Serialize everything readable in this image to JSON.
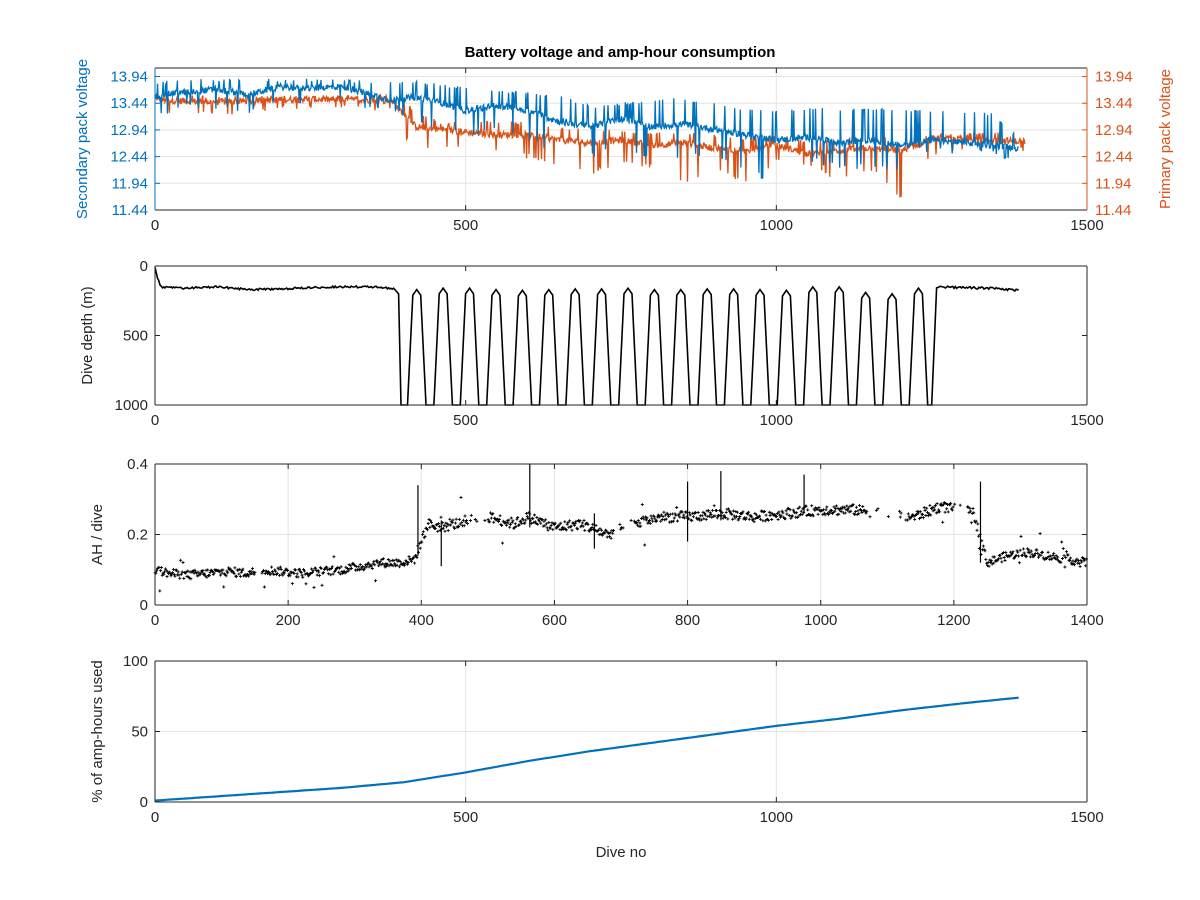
{
  "figure": {
    "title": "Battery voltage and amp-hour consumption"
  },
  "colors": {
    "secondary": "#0072BD",
    "primary": "#D95319",
    "black": "#000000",
    "grid": "#e3e3e3",
    "axis": "#262626"
  },
  "chart_data": [
    {
      "id": "voltage",
      "type": "line",
      "title": "Battery voltage and amp-hour consumption",
      "xlabel": "",
      "ylabel": "Secondary pack voltage",
      "ylabel_right": "Primary pack voltage",
      "xlim": [
        0,
        1500
      ],
      "ylim": [
        11.44,
        14.1
      ],
      "xticks": [
        "0",
        "500",
        "1000",
        "1500"
      ],
      "yticks": [
        "11.44",
        "11.94",
        "12.44",
        "12.94",
        "13.44",
        "13.94"
      ],
      "yticks_right": [
        "11.44",
        "11.94",
        "12.44",
        "12.94",
        "13.44",
        "13.94"
      ],
      "grid": true,
      "series": [
        {
          "name": "Secondary pack voltage",
          "axis": "left",
          "x": [
            0,
            10,
            50,
            100,
            150,
            200,
            250,
            300,
            350,
            380,
            420,
            460,
            500,
            550,
            600,
            650,
            700,
            750,
            800,
            850,
            900,
            950,
            1000,
            1050,
            1100,
            1150,
            1200,
            1250,
            1300,
            1350,
            1390
          ],
          "values": [
            13.55,
            13.6,
            13.65,
            13.7,
            13.6,
            13.75,
            13.72,
            13.75,
            13.6,
            13.5,
            13.55,
            13.45,
            13.3,
            13.4,
            13.3,
            13.1,
            13.0,
            13.15,
            13.0,
            13.05,
            12.95,
            12.85,
            12.75,
            12.8,
            12.7,
            12.75,
            12.65,
            12.75,
            12.7,
            12.65,
            12.6
          ],
          "range": [
            [
              12.95,
              13.85
            ],
            [
              13.2,
              13.85
            ],
            [
              13.35,
              13.9
            ],
            [
              13.3,
              13.9
            ],
            [
              13.25,
              13.9
            ],
            [
              13.4,
              13.9
            ],
            [
              13.4,
              13.9
            ],
            [
              13.45,
              13.9
            ],
            [
              13.3,
              13.85
            ],
            [
              13.3,
              13.85
            ],
            [
              13.1,
              13.85
            ],
            [
              12.9,
              13.8
            ],
            [
              12.8,
              13.75
            ],
            [
              12.9,
              13.7
            ],
            [
              12.7,
              13.65
            ],
            [
              12.5,
              13.6
            ],
            [
              12.4,
              13.4
            ],
            [
              12.6,
              13.45
            ],
            [
              12.3,
              13.5
            ],
            [
              12.4,
              13.55
            ],
            [
              12.4,
              13.45
            ],
            [
              12.2,
              13.35
            ],
            [
              11.85,
              13.3
            ],
            [
              12.35,
              13.35
            ],
            [
              12.2,
              13.35
            ],
            [
              12.2,
              13.35
            ],
            [
              12.1,
              13.35
            ],
            [
              12.5,
              13.3
            ],
            [
              12.5,
              13.3
            ],
            [
              12.45,
              13.25
            ],
            [
              12.35,
              12.8
            ]
          ]
        },
        {
          "name": "Primary pack voltage",
          "axis": "right",
          "x": [
            0,
            10,
            50,
            100,
            150,
            200,
            250,
            300,
            350,
            380,
            400,
            420,
            460,
            500,
            550,
            600,
            650,
            700,
            750,
            800,
            850,
            900,
            950,
            1000,
            1050,
            1100,
            1150,
            1200,
            1250,
            1300,
            1350,
            1400
          ],
          "values": [
            13.55,
            13.5,
            13.48,
            13.46,
            13.48,
            13.5,
            13.52,
            13.5,
            13.5,
            13.48,
            13.25,
            13.0,
            12.95,
            12.9,
            12.85,
            12.85,
            12.75,
            12.7,
            12.75,
            12.65,
            12.7,
            12.6,
            12.55,
            12.65,
            12.5,
            12.55,
            12.6,
            12.55,
            12.75,
            12.78,
            12.75,
            12.72
          ],
          "range": [
            [
              13.1,
              13.6
            ],
            [
              13.2,
              13.6
            ],
            [
              13.2,
              13.6
            ],
            [
              13.2,
              13.58
            ],
            [
              13.25,
              13.58
            ],
            [
              13.3,
              13.58
            ],
            [
              13.3,
              13.6
            ],
            [
              13.3,
              13.6
            ],
            [
              13.3,
              13.58
            ],
            [
              13.3,
              13.6
            ],
            [
              12.8,
              13.5
            ],
            [
              12.6,
              13.3
            ],
            [
              12.6,
              13.1
            ],
            [
              12.55,
              13.1
            ],
            [
              12.5,
              13.1
            ],
            [
              12.4,
              13.1
            ],
            [
              12.2,
              13.0
            ],
            [
              12.1,
              12.95
            ],
            [
              12.3,
              12.95
            ],
            [
              12.2,
              12.9
            ],
            [
              11.9,
              12.9
            ],
            [
              12.2,
              12.85
            ],
            [
              11.9,
              12.8
            ],
            [
              12.3,
              12.85
            ],
            [
              12.2,
              12.75
            ],
            [
              11.95,
              12.8
            ],
            [
              12.2,
              12.85
            ],
            [
              11.6,
              12.8
            ],
            [
              12.4,
              12.85
            ],
            [
              12.5,
              12.9
            ],
            [
              12.45,
              12.9
            ],
            [
              12.55,
              12.9
            ]
          ]
        }
      ]
    },
    {
      "id": "depth",
      "type": "line",
      "title": "",
      "xlabel": "",
      "ylabel": "Dive depth (m)",
      "xlim": [
        0,
        1500
      ],
      "ylim": [
        0,
        1000
      ],
      "y_reversed": true,
      "xticks": [
        "0",
        "500",
        "1000",
        "1500"
      ],
      "yticks": [
        "0",
        "500",
        "1000"
      ],
      "grid": false,
      "series": [
        {
          "name": "",
          "x": [
            0,
            5,
            10,
            50,
            100,
            150,
            200,
            250,
            300,
            350,
            380,
            390,
            400,
            1250,
            1260,
            1300,
            1350,
            1390
          ],
          "values": [
            10,
            100,
            150,
            160,
            150,
            170,
            165,
            155,
            150,
            150,
            160,
            180,
            1000,
            1000,
            150,
            155,
            160,
            175
          ],
          "shallow_depths": [
            170,
            160,
            160,
            170,
            175,
            170,
            165,
            165,
            160,
            170,
            170,
            165,
            165,
            170,
            175,
            150,
            150,
            190,
            200,
            160
          ],
          "dives_between": [
            400,
            1250
          ]
        }
      ]
    },
    {
      "id": "ah",
      "type": "scatter",
      "title": "",
      "xlabel": "",
      "ylabel": "AH / dive",
      "xlim": [
        0,
        1400
      ],
      "ylim": [
        0,
        0.4
      ],
      "xticks": [
        "0",
        "200",
        "400",
        "600",
        "800",
        "1000",
        "1200",
        "1400"
      ],
      "yticks": [
        "0",
        "0.2",
        "0.4"
      ],
      "grid": true,
      "series": [
        {
          "name": "",
          "x": [
            0,
            20,
            50,
            80,
            110,
            140,
            160,
            190,
            220,
            250,
            280,
            310,
            340,
            370,
            390,
            410,
            430,
            470,
            500,
            540,
            560,
            600,
            640,
            680,
            720,
            760,
            800,
            850,
            900,
            950,
            1000,
            1050,
            1140,
            1180,
            1230,
            1250,
            1280,
            1310,
            1340,
            1370,
            1400
          ],
          "values": [
            0.1,
            0.09,
            0.085,
            0.09,
            0.095,
            0.09,
            0.1,
            0.095,
            0.09,
            0.095,
            0.1,
            0.11,
            0.12,
            0.12,
            0.13,
            0.23,
            0.22,
            0.24,
            0.25,
            0.23,
            0.25,
            0.22,
            0.23,
            0.2,
            0.23,
            0.25,
            0.25,
            0.26,
            0.25,
            0.26,
            0.27,
            0.27,
            0.25,
            0.28,
            0.26,
            0.12,
            0.14,
            0.15,
            0.14,
            0.13,
            0.12
          ]
        }
      ]
    },
    {
      "id": "pct",
      "type": "line",
      "title": "",
      "xlabel": "Dive no",
      "ylabel": "% of amp-hours used",
      "xlim": [
        0,
        1500
      ],
      "ylim": [
        0,
        100
      ],
      "xticks": [
        "0",
        "500",
        "1000",
        "1500"
      ],
      "yticks": [
        "0",
        "50",
        "100"
      ],
      "grid": true,
      "series": [
        {
          "name": "",
          "x": [
            0,
            100,
            200,
            300,
            400,
            500,
            600,
            700,
            800,
            900,
            1000,
            1100,
            1200,
            1300,
            1390
          ],
          "values": [
            1,
            4,
            7,
            10,
            14,
            21,
            29,
            36,
            42,
            48,
            54,
            59,
            65,
            70,
            74
          ]
        }
      ]
    }
  ]
}
